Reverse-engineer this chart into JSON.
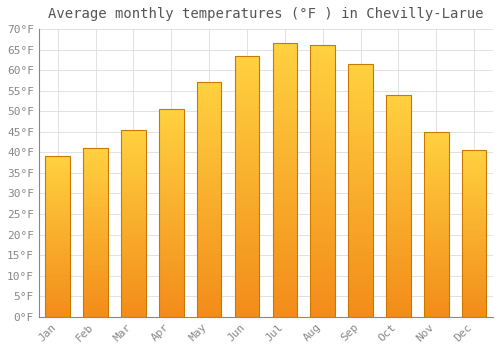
{
  "title": "Average monthly temperatures (°F ) in Chevilly-Larue",
  "months": [
    "Jan",
    "Feb",
    "Mar",
    "Apr",
    "May",
    "Jun",
    "Jul",
    "Aug",
    "Sep",
    "Oct",
    "Nov",
    "Dec"
  ],
  "values": [
    39,
    41,
    45.5,
    50.5,
    57,
    63.5,
    66.5,
    66,
    61.5,
    54,
    45,
    40.5
  ],
  "bar_color_main": "#FFA500",
  "bar_color_top": "#FFD050",
  "bar_color_bottom": "#F08000",
  "bar_edge_color": "#CC7700",
  "background_color": "#FFFFFF",
  "plot_bg_color": "#FFFFFF",
  "grid_color": "#DDDDDD",
  "ylim": [
    0,
    70
  ],
  "yticks": [
    0,
    5,
    10,
    15,
    20,
    25,
    30,
    35,
    40,
    45,
    50,
    55,
    60,
    65,
    70
  ],
  "title_fontsize": 10,
  "tick_fontsize": 8,
  "font_family": "monospace"
}
